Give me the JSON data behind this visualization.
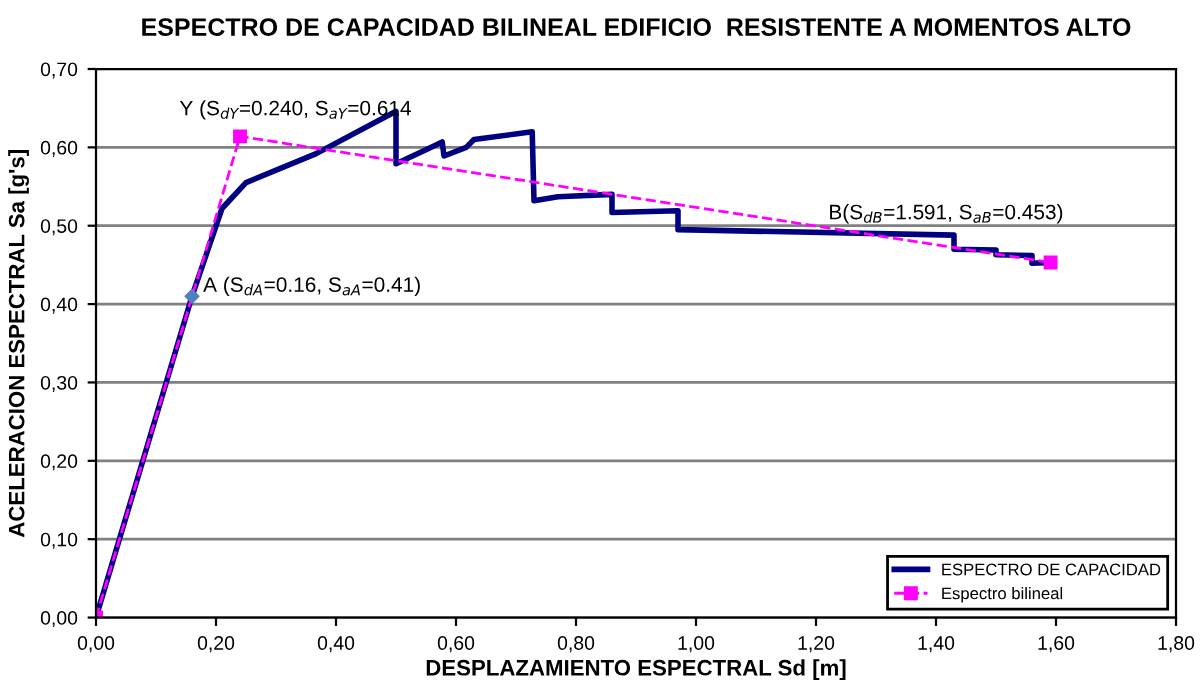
{
  "chart_data": {
    "type": "line",
    "title": "ESPECTRO DE CAPACIDAD BILINEAL EDIFICIO  RESISTENTE A MOMENTOS ALTO",
    "xlabel": "DESPLAZAMIENTO ESPECTRAL Sd [m]",
    "ylabel": "ACELERACION ESPECTRAL Sa [g's]",
    "series": [
      {
        "name": "ESPECTRO DE CAPACIDAD",
        "color": "#000080",
        "marker": "none",
        "line_style": "solid",
        "x": [
          0,
          0.16,
          0.21,
          0.25,
          0.367,
          0.5,
          0.5,
          0.55,
          0.577,
          0.58,
          0.617,
          0.63,
          0.727,
          0.73,
          0.77,
          0.86,
          0.86,
          0.97,
          0.97,
          1.43,
          1.43,
          1.5,
          1.5,
          1.56,
          1.56,
          1.59
        ],
        "values": [
          0,
          0.41,
          0.522,
          0.555,
          0.592,
          0.646,
          0.579,
          0.597,
          0.607,
          0.589,
          0.6,
          0.61,
          0.62,
          0.532,
          0.537,
          0.54,
          0.517,
          0.519,
          0.495,
          0.488,
          0.47,
          0.469,
          0.463,
          0.462,
          0.452,
          0.453
        ]
      },
      {
        "name": "Espectro bilineal",
        "color": "#ff00ff",
        "marker": "square",
        "line_style": "dashed",
        "x": [
          0,
          0.24,
          1.591
        ],
        "values": [
          0,
          0.614,
          0.453
        ]
      }
    ],
    "annotations": [
      {
        "text": "Y (S$_{dY}$=0.240, S$_{aY}$=0.614",
        "x": 0.24,
        "y": 0.614
      },
      {
        "text": "A (S$_{dA}$=0.16, S$_{aA}$=0.41)",
        "x": 0.16,
        "y": 0.41
      },
      {
        "text": "B(S$_{dB}$=1.591, S$_{aB}$=0.453)",
        "x": 1.591,
        "y": 0.453
      }
    ],
    "xlim": [
      0,
      1.8
    ],
    "ylim": [
      0,
      0.7
    ],
    "xticks": [
      {
        "value": 0,
        "label": "0,00"
      },
      {
        "value": 0.2,
        "label": "0,20"
      },
      {
        "value": 0.4,
        "label": "0,40"
      },
      {
        "value": 0.6,
        "label": "0,60"
      },
      {
        "value": 0.8,
        "label": "0,80"
      },
      {
        "value": 1.0,
        "label": "1,00"
      },
      {
        "value": 1.2,
        "label": "1,20"
      },
      {
        "value": 1.4,
        "label": "1,40"
      },
      {
        "value": 1.6,
        "label": "1,60"
      },
      {
        "value": 1.8,
        "label": "1,80"
      }
    ],
    "yticks": [
      {
        "value": 0,
        "label": "0,00"
      },
      {
        "value": 0.1,
        "label": "0,10"
      },
      {
        "value": 0.2,
        "label": "0,20"
      },
      {
        "value": 0.3,
        "label": "0,30"
      },
      {
        "value": 0.4,
        "label": "0,40"
      },
      {
        "value": 0.5,
        "label": "0,50"
      },
      {
        "value": 0.6,
        "label": "0,60"
      },
      {
        "value": 0.7,
        "label": "0,70"
      }
    ],
    "grid": "y",
    "legend": "bottom right"
  }
}
